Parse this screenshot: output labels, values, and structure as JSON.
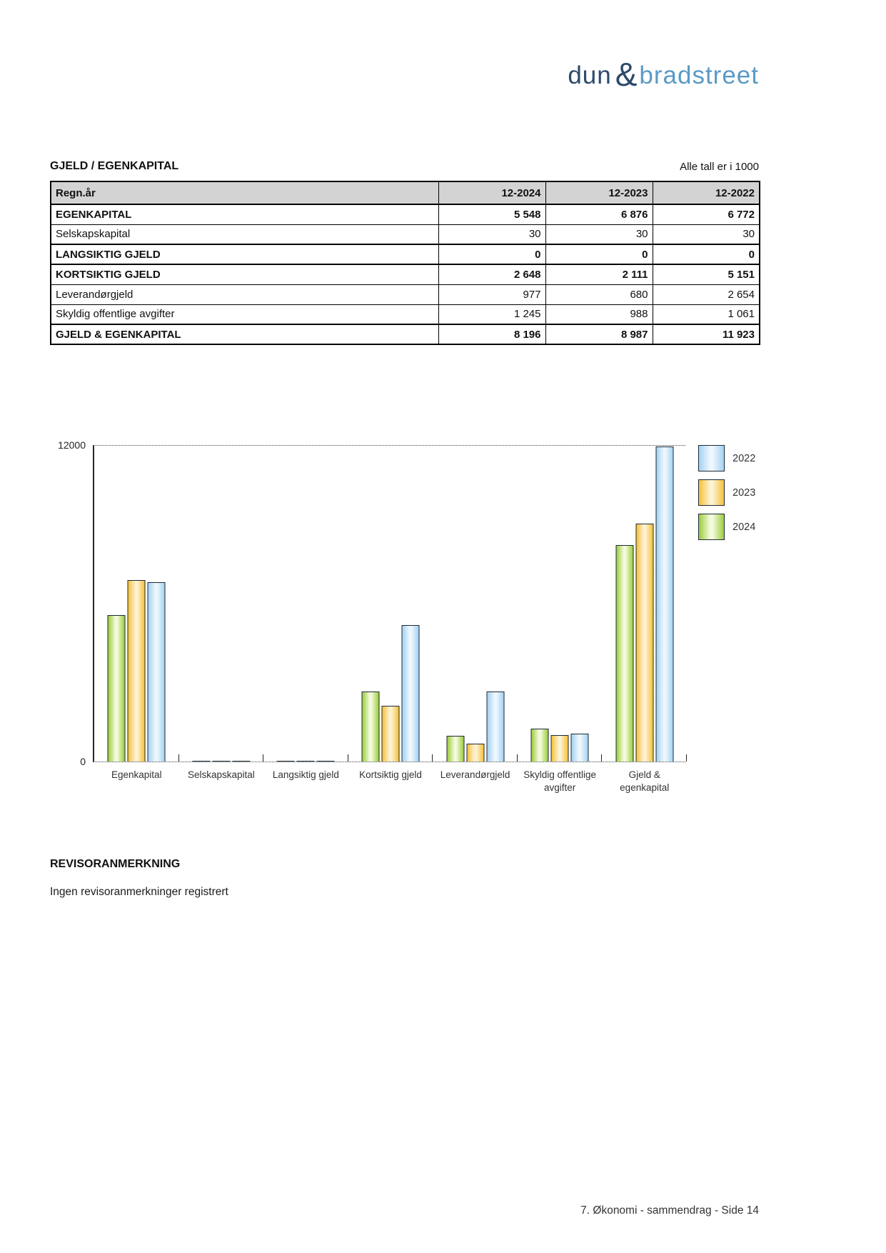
{
  "logo": {
    "part1": "dun",
    "amp": "&",
    "part2": "bradstreet"
  },
  "section": {
    "title": "GJELD / EGENKAPITAL",
    "units_note": "Alle tall er i 1000"
  },
  "table": {
    "header": [
      "Regn.år",
      "12-2024",
      "12-2023",
      "12-2022"
    ],
    "rows": [
      {
        "label": "EGENKAPITAL",
        "values": [
          "5 548",
          "6 876",
          "6 772"
        ],
        "bold": true
      },
      {
        "label": "Selskapskapital",
        "values": [
          "30",
          "30",
          "30"
        ],
        "bold": false
      },
      {
        "label": "LANGSIKTIG GJELD",
        "values": [
          "0",
          "0",
          "0"
        ],
        "bold": true
      },
      {
        "label": "KORTSIKTIG GJELD",
        "values": [
          "2 648",
          "2 111",
          "5 151"
        ],
        "bold": true
      },
      {
        "label": "Leverandørgjeld",
        "values": [
          "977",
          "680",
          "2 654"
        ],
        "bold": false
      },
      {
        "label": "Skyldig offentlige avgifter",
        "values": [
          "1 245",
          "988",
          "1 061"
        ],
        "bold": false
      },
      {
        "label": "GJELD & EGENKAPITAL",
        "values": [
          "8 196",
          "8 987",
          "11 923"
        ],
        "bold": true
      }
    ]
  },
  "chart_data": {
    "type": "bar",
    "title": "",
    "xlabel": "",
    "ylabel": "",
    "ylim": [
      0,
      12000
    ],
    "yticks": [
      0,
      12000
    ],
    "grid": "dotted line at y=12000 and dotted baseline at y=0",
    "legend_position": "top-right",
    "categories": [
      "Egenkapital",
      "Selskapskapital",
      "Langsiktig gjeld",
      "Kortsiktig gjeld",
      "Leverandørgjeld",
      "Skyldig offentlige avgifter",
      "Gjeld & egenkapital"
    ],
    "category_label_lines": [
      [
        "Egenkapital"
      ],
      [
        "Selskapskapital"
      ],
      [
        "Langsiktig gjeld"
      ],
      [
        "Kortsiktig gjeld"
      ],
      [
        "Leverandørgjeld"
      ],
      [
        "Skyldig offentlige",
        "avgifter"
      ],
      [
        "Gjeld &",
        "egenkapital"
      ]
    ],
    "series": [
      {
        "name": "2024",
        "values": [
          5548,
          30,
          0,
          2648,
          977,
          1245,
          8196
        ],
        "color_edge": "#9ccd3c",
        "color_center": "#f4fadd"
      },
      {
        "name": "2023",
        "values": [
          6876,
          30,
          0,
          2111,
          680,
          988,
          8987
        ],
        "color_edge": "#f6c139",
        "color_center": "#fdf2d2"
      },
      {
        "name": "2022",
        "values": [
          6772,
          30,
          0,
          5151,
          2654,
          1061,
          11923
        ],
        "color_edge": "#a3d2f2",
        "color_center": "#eef7fd"
      }
    ],
    "legend_order": [
      "2022",
      "2023",
      "2024"
    ],
    "y_axis_labels": {
      "top": "12000",
      "zero": "0"
    }
  },
  "revisor": {
    "heading": "REVISORANMERKNING",
    "text": "Ingen revisoranmerkninger registrert"
  },
  "footer": {
    "text": "7. Økonomi - sammendrag - Side 14"
  },
  "colors": {
    "logo_dark_blue": "#2d4a6b",
    "logo_light_blue": "#5b9ac6",
    "table_header_bg": "#d3d3d3",
    "bar_border": "#1d2a35",
    "series_2024_green": "#9ccd3c",
    "series_2023_orange": "#f6c139",
    "series_2022_blue": "#a3d2f2"
  }
}
